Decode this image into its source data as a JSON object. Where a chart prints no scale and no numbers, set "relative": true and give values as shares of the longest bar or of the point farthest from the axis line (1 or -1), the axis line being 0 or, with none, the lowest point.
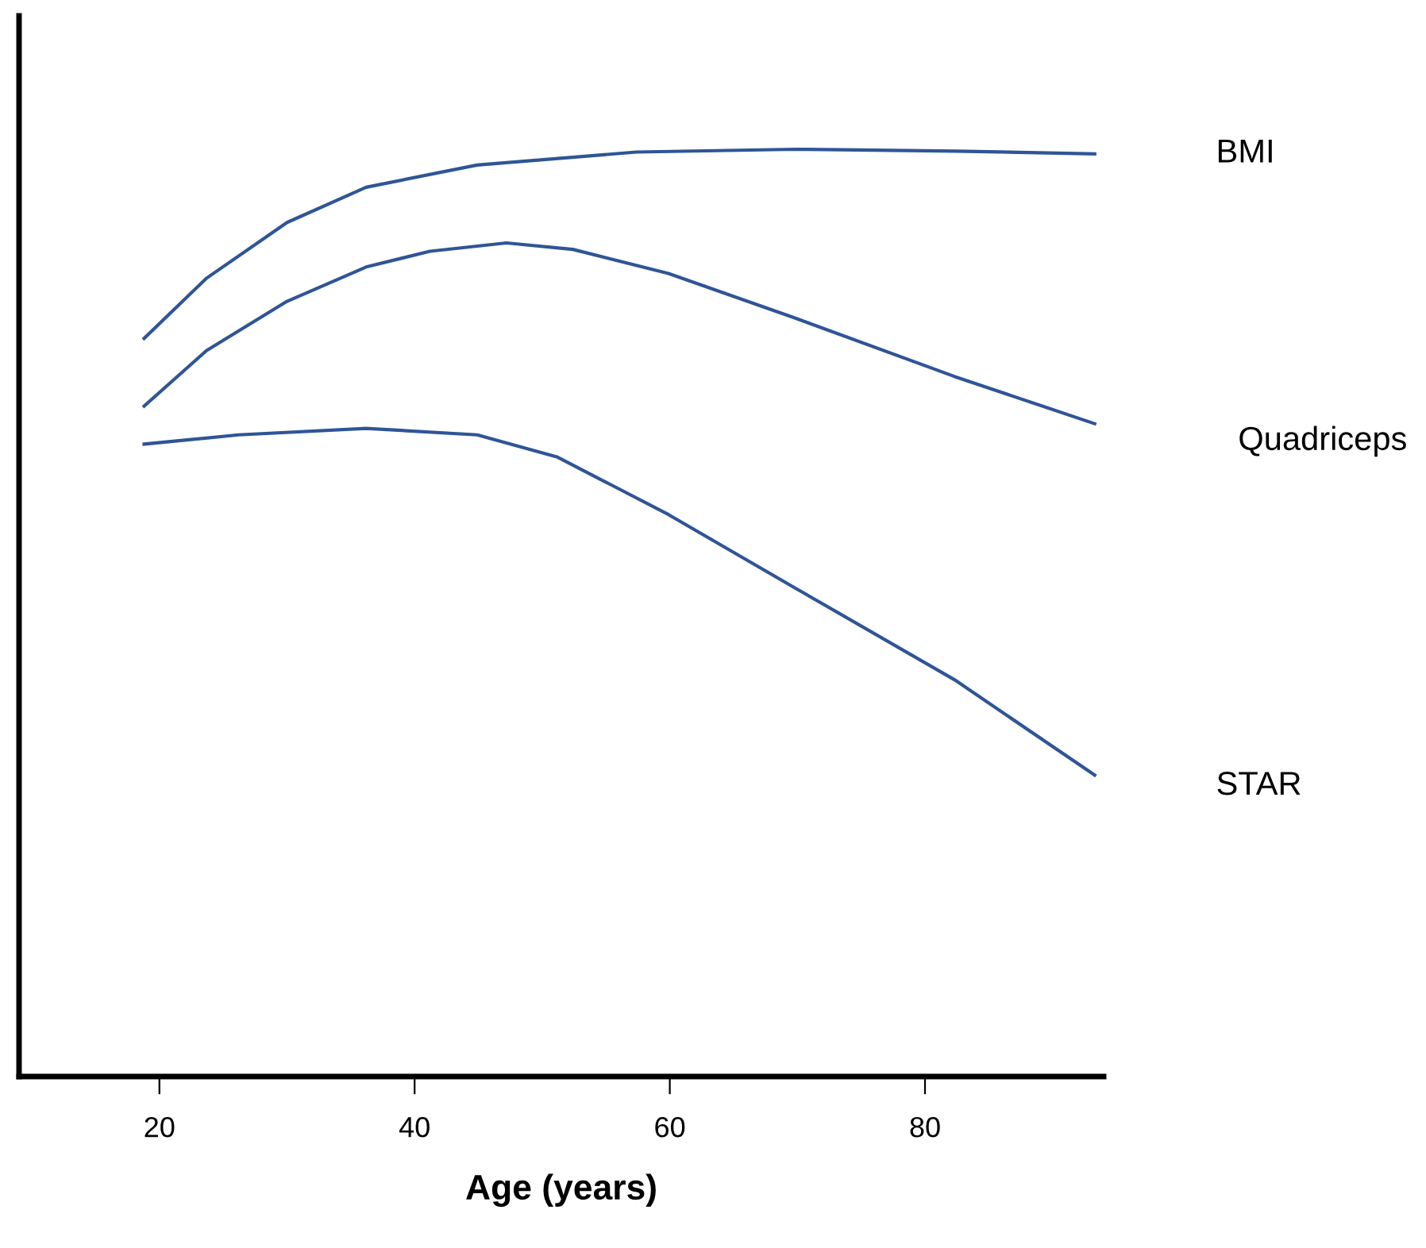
{
  "chart_data": {
    "type": "line",
    "relative": true,
    "xlabel": "Age (years)",
    "xlim": [
      9,
      94
    ],
    "xticks": [
      20,
      40,
      60,
      80
    ],
    "grid": false,
    "legend": false,
    "marker": "none",
    "line_style": "solid",
    "series": [
      {
        "name": "BMI",
        "color": "#2f5597",
        "x": [
          18.8,
          23.7,
          30.0,
          36.2,
          44.9,
          57.4,
          69.9,
          82.4,
          93.3
        ],
        "values": [
          0.796,
          0.861,
          0.921,
          0.959,
          0.983,
          0.997,
          1.0,
          0.998,
          0.995
        ]
      },
      {
        "name": "Quadriceps",
        "color": "#2f5597",
        "x": [
          18.8,
          23.7,
          30.0,
          36.2,
          41.2,
          47.2,
          52.4,
          59.9,
          69.8,
          82.3,
          93.3
        ],
        "values": [
          0.723,
          0.783,
          0.836,
          0.873,
          0.89,
          0.899,
          0.892,
          0.866,
          0.818,
          0.755,
          0.704
        ]
      },
      {
        "name": "STAR",
        "color": "#2f5597",
        "x": [
          18.8,
          26.2,
          36.2,
          44.9,
          51.2,
          59.9,
          69.8,
          82.3,
          93.3
        ],
        "values": [
          0.682,
          0.692,
          0.699,
          0.692,
          0.668,
          0.606,
          0.527,
          0.428,
          0.325
        ]
      }
    ]
  }
}
